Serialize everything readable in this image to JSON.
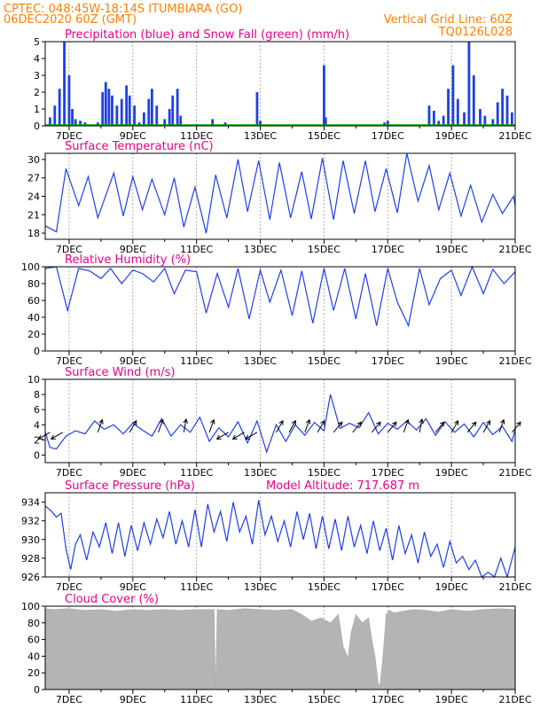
{
  "header": {
    "line1": "CPTEC:   048:45W-18:14S   ITUMBIARA (GO)",
    "line2": "06DEC2020 60Z (GMT)",
    "grid_note": "Vertical Grid Line: 60Z",
    "code": "TQ0126L028"
  },
  "colors": {
    "header": "#ff7f00",
    "title": "#e8008a",
    "precip": "#1f3fe8",
    "snow": "#00b000",
    "line": "#1f3fe8",
    "wind_vector": "#000000",
    "cloud": "#b4b4b4"
  },
  "x_labels": [
    "7DEC",
    "9DEC",
    "11DEC",
    "13DEC",
    "15DEC",
    "17DEC",
    "19DEC",
    "21DEC"
  ],
  "chart_data": [
    {
      "type": "bar",
      "title": "Precipitation (blue) and Snow Fall (green) (mm/h)",
      "ylim": [
        0,
        5
      ],
      "yticks": [
        0,
        1,
        2,
        3,
        4,
        5
      ],
      "x_range_days": [
        6.25,
        21
      ],
      "series": [
        {
          "name": "Precipitation",
          "x": [
            6.4,
            6.55,
            6.7,
            6.85,
            7.0,
            7.1,
            7.2,
            7.35,
            7.5,
            7.9,
            8.05,
            8.15,
            8.25,
            8.35,
            8.5,
            8.65,
            8.8,
            8.9,
            9.05,
            9.2,
            9.35,
            9.5,
            9.6,
            9.75,
            10.0,
            10.15,
            10.25,
            10.4,
            10.5,
            11.0,
            11.5,
            11.9,
            12.9,
            13.0,
            15.0,
            15.05,
            16.9,
            17.0,
            18.3,
            18.45,
            18.6,
            18.75,
            18.9,
            19.05,
            19.2,
            19.4,
            19.55,
            19.7,
            19.9,
            20.05,
            20.3,
            20.45,
            20.6,
            20.75,
            20.9
          ],
          "values": [
            0.5,
            1.2,
            2.2,
            5.0,
            3.0,
            1.0,
            0.4,
            0.3,
            0.2,
            0.2,
            2.0,
            2.6,
            2.2,
            1.8,
            1.2,
            1.6,
            2.4,
            1.8,
            1.2,
            0.2,
            0.8,
            1.6,
            2.2,
            1.2,
            0.4,
            1.0,
            1.8,
            2.2,
            0.6,
            0.1,
            0.4,
            0.2,
            2.0,
            0.3,
            3.6,
            0.5,
            0.2,
            0.3,
            1.2,
            0.9,
            0.3,
            0.6,
            2.2,
            3.6,
            1.6,
            0.8,
            5.0,
            3.0,
            1.0,
            0.6,
            0.4,
            1.4,
            2.2,
            1.8,
            0.8
          ]
        },
        {
          "name": "Snow Fall",
          "x": [
            6.25,
            21
          ],
          "values": [
            0,
            0
          ]
        }
      ]
    },
    {
      "type": "line",
      "title": "Surface Temperature (nC)",
      "ylim": [
        17,
        31
      ],
      "yticks": [
        18,
        21,
        24,
        27,
        30
      ],
      "series": [
        {
          "name": "Temperature",
          "x": [
            6.25,
            6.6,
            6.9,
            7.3,
            7.6,
            7.9,
            8.4,
            8.7,
            9.0,
            9.3,
            9.6,
            10.0,
            10.3,
            10.6,
            10.95,
            11.3,
            11.6,
            11.95,
            12.3,
            12.6,
            12.95,
            13.3,
            13.6,
            13.95,
            14.3,
            14.6,
            14.95,
            15.3,
            15.6,
            15.95,
            16.3,
            16.6,
            16.95,
            17.3,
            17.6,
            17.95,
            18.3,
            18.6,
            18.95,
            19.3,
            19.6,
            19.95,
            20.3,
            20.6,
            20.95,
            21.0
          ],
          "values": [
            19.2,
            18.2,
            28.5,
            22.5,
            27.2,
            20.5,
            27.8,
            20.8,
            27.2,
            21.8,
            26.8,
            21.0,
            27.0,
            19.0,
            25.5,
            18.0,
            27.5,
            20.5,
            30.0,
            21.5,
            29.8,
            20.2,
            29.5,
            20.5,
            28.0,
            20.3,
            30.2,
            20.2,
            29.8,
            21.2,
            29.8,
            21.5,
            28.5,
            21.3,
            31.0,
            23.2,
            29.0,
            21.8,
            27.8,
            20.8,
            25.8,
            19.8,
            24.3,
            21.2,
            24.0,
            22.5
          ]
        }
      ]
    },
    {
      "type": "line",
      "title": "Relative Humidity (%)",
      "ylim": [
        0,
        100
      ],
      "yticks": [
        0,
        20,
        40,
        60,
        80,
        100
      ],
      "series": [
        {
          "name": "Relative Humidity",
          "x": [
            6.25,
            6.6,
            6.95,
            7.3,
            7.65,
            8.0,
            8.3,
            8.65,
            9.0,
            9.3,
            9.65,
            10.0,
            10.3,
            10.65,
            11.0,
            11.3,
            11.65,
            12.0,
            12.3,
            12.65,
            13.0,
            13.3,
            13.65,
            14.0,
            14.3,
            14.65,
            15.0,
            15.3,
            15.65,
            16.0,
            16.3,
            16.65,
            17.0,
            17.3,
            17.65,
            18.0,
            18.3,
            18.65,
            19.0,
            19.3,
            19.65,
            20.0,
            20.3,
            20.65,
            21.0
          ],
          "values": [
            98,
            100,
            48,
            98,
            95,
            86,
            98,
            80,
            96,
            92,
            82,
            98,
            68,
            96,
            94,
            45,
            92,
            52,
            98,
            38,
            96,
            58,
            96,
            42,
            95,
            33,
            98,
            48,
            98,
            38,
            92,
            30,
            98,
            58,
            30,
            98,
            55,
            86,
            96,
            66,
            100,
            68,
            97,
            80,
            94
          ]
        }
      ]
    },
    {
      "type": "line",
      "title": "Surface Wind (m/s)",
      "ylim": [
        -1,
        10
      ],
      "yticks": [
        0,
        2,
        4,
        6,
        8,
        10
      ],
      "series": [
        {
          "name": "Wind speed",
          "x": [
            6.25,
            6.4,
            6.6,
            6.9,
            7.2,
            7.5,
            7.8,
            8.1,
            8.4,
            8.7,
            9.0,
            9.3,
            9.6,
            9.9,
            10.2,
            10.5,
            10.8,
            11.1,
            11.4,
            11.7,
            12.0,
            12.3,
            12.6,
            12.9,
            13.2,
            13.5,
            13.8,
            14.1,
            14.4,
            14.7,
            15.0,
            15.2,
            15.5,
            15.8,
            16.1,
            16.4,
            16.7,
            17.0,
            17.3,
            17.6,
            17.9,
            18.2,
            18.5,
            18.8,
            19.1,
            19.4,
            19.7,
            20.0,
            20.3,
            20.6,
            20.9,
            21.0
          ],
          "values": [
            3.0,
            1.0,
            0.8,
            2.5,
            3.2,
            2.8,
            4.5,
            3.4,
            4.0,
            2.8,
            4.2,
            3.3,
            2.5,
            4.8,
            2.5,
            4.0,
            3.0,
            5.0,
            1.8,
            3.6,
            2.4,
            4.4,
            1.6,
            4.5,
            0.4,
            4.0,
            1.8,
            4.0,
            2.6,
            4.3,
            3.2,
            8.0,
            3.5,
            4.2,
            3.6,
            5.6,
            2.8,
            4.2,
            3.4,
            4.5,
            3.3,
            4.8,
            2.6,
            4.4,
            3.0,
            4.1,
            2.4,
            4.3,
            2.7,
            3.8,
            1.8,
            3.4
          ]
        },
        {
          "name": "Wind direction (deg, from)",
          "x": [
            6.4,
            6.8,
            7.9,
            8.9,
            9.8,
            10.6,
            11.4,
            12.0,
            12.5,
            12.9,
            13.5,
            13.9,
            14.4,
            14.8,
            15.3,
            15.9,
            16.5,
            17.0,
            17.5,
            18.0,
            18.5,
            19.0,
            19.5,
            20.0,
            20.5,
            20.9
          ],
          "values": [
            60,
            60,
            200,
            210,
            200,
            190,
            200,
            60,
            60,
            60,
            210,
            210,
            200,
            210,
            220,
            220,
            220,
            220,
            200,
            190,
            220,
            210,
            220,
            210,
            200,
            220
          ]
        }
      ]
    },
    {
      "type": "line",
      "title": "Surface Pressure (hPa)",
      "annotation": "Model Altitude: 717.687 m",
      "ylim": [
        926,
        935
      ],
      "yticks": [
        926,
        928,
        930,
        932,
        934
      ],
      "series": [
        {
          "name": "Pressure",
          "x": [
            6.25,
            6.45,
            6.6,
            6.75,
            6.9,
            7.05,
            7.2,
            7.35,
            7.55,
            7.75,
            7.95,
            8.15,
            8.35,
            8.55,
            8.75,
            8.95,
            9.15,
            9.35,
            9.55,
            9.75,
            9.95,
            10.15,
            10.35,
            10.55,
            10.75,
            10.95,
            11.15,
            11.35,
            11.55,
            11.75,
            11.95,
            12.15,
            12.35,
            12.55,
            12.75,
            12.95,
            13.15,
            13.35,
            13.55,
            13.75,
            13.95,
            14.15,
            14.35,
            14.55,
            14.75,
            14.95,
            15.15,
            15.35,
            15.55,
            15.75,
            15.95,
            16.15,
            16.35,
            16.55,
            16.75,
            16.95,
            17.15,
            17.35,
            17.55,
            17.75,
            17.95,
            18.15,
            18.35,
            18.55,
            18.75,
            18.95,
            19.15,
            19.35,
            19.55,
            19.75,
            19.95,
            20.15,
            20.35,
            20.55,
            20.75,
            21.0
          ],
          "values": [
            933.6,
            933.0,
            932.4,
            932.8,
            929.0,
            926.8,
            929.5,
            930.5,
            927.8,
            930.8,
            929.2,
            931.8,
            928.5,
            931.8,
            928.2,
            931.5,
            928.8,
            931.8,
            929.5,
            932.2,
            930.2,
            933.0,
            929.5,
            932.0,
            929.2,
            933.2,
            929.2,
            933.8,
            930.8,
            933.0,
            929.8,
            934.0,
            930.8,
            932.5,
            929.5,
            934.2,
            930.5,
            932.5,
            929.8,
            932.0,
            929.2,
            933.0,
            930.0,
            932.8,
            929.0,
            932.5,
            929.0,
            932.2,
            928.8,
            932.5,
            929.2,
            931.5,
            928.5,
            932.0,
            928.8,
            931.2,
            927.8,
            931.5,
            928.5,
            930.5,
            927.5,
            930.8,
            928.2,
            929.5,
            927.0,
            929.8,
            927.5,
            928.2,
            926.8,
            927.8,
            925.8,
            926.5,
            926.0,
            928.0,
            926.0,
            929.2
          ]
        }
      ]
    },
    {
      "type": "area",
      "title": "Cloud Cover (%)",
      "ylim": [
        0,
        100
      ],
      "yticks": [
        0,
        20,
        40,
        60,
        80,
        100
      ],
      "series": [
        {
          "name": "Cloud Cover",
          "x": [
            6.25,
            6.5,
            7.0,
            7.5,
            8.0,
            8.5,
            9.0,
            9.5,
            10.0,
            10.5,
            11.0,
            11.4,
            11.55,
            11.6,
            11.65,
            12.0,
            12.5,
            13.0,
            13.5,
            14.0,
            14.3,
            14.6,
            14.9,
            15.2,
            15.45,
            15.6,
            15.75,
            15.85,
            16.0,
            16.2,
            16.4,
            16.5,
            16.6,
            16.7,
            16.75,
            16.85,
            16.95,
            17.05,
            17.2,
            17.5,
            17.8,
            18.2,
            18.6,
            19.0,
            19.5,
            20.0,
            20.5,
            21.0
          ],
          "values": [
            97,
            96,
            97,
            95,
            96,
            94,
            96,
            95,
            96,
            95,
            96,
            96,
            96,
            0,
            96,
            95,
            97,
            96,
            95,
            96,
            90,
            82,
            86,
            80,
            90,
            52,
            38,
            68,
            90,
            80,
            86,
            60,
            40,
            8,
            3,
            40,
            90,
            95,
            92,
            94,
            96,
            95,
            93,
            96,
            94,
            96,
            97,
            96
          ]
        }
      ]
    }
  ]
}
